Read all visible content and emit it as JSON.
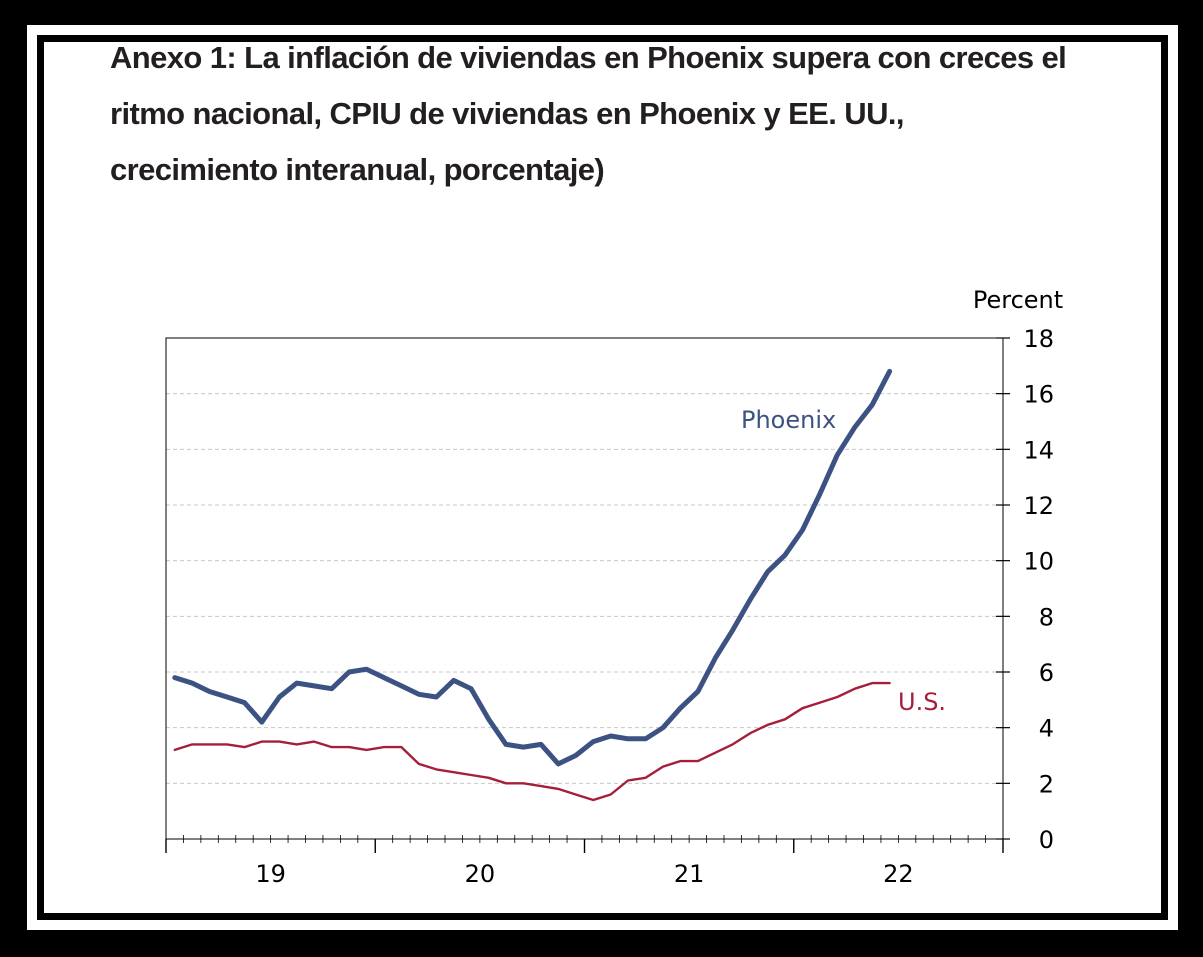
{
  "title": "Anexo 1: La inflación de viviendas en Phoenix supera con creces el ritmo nacional, CPIU de viviendas en Phoenix y EE. UU., crecimiento interanual, porcentaje)",
  "colors": {
    "phoenix": "#3b5282",
    "us": "#a51f3a",
    "grid": "#c8c8c8",
    "axis": "#000000"
  },
  "chart_data": {
    "type": "line",
    "title": "",
    "ylabel": "Percent",
    "xlabel": "",
    "ylim": [
      0,
      18
    ],
    "yticks": [
      "0",
      "2",
      "4",
      "6",
      "8",
      "10",
      "12",
      "14",
      "16",
      "18"
    ],
    "xlim": [
      18.5,
      22.5
    ],
    "xticks": [
      "19",
      "20",
      "21",
      "22"
    ],
    "grid": "horizontal dashed",
    "series": [
      {
        "name": "Phoenix",
        "label": "Phoenix",
        "x": [
          18.542,
          18.625,
          18.708,
          18.792,
          18.875,
          18.958,
          19.042,
          19.125,
          19.208,
          19.292,
          19.375,
          19.458,
          19.542,
          19.625,
          19.708,
          19.792,
          19.875,
          19.958,
          20.042,
          20.125,
          20.208,
          20.292,
          20.375,
          20.458,
          20.542,
          20.625,
          20.708,
          20.792,
          20.875,
          20.958,
          21.042,
          21.125,
          21.208,
          21.292,
          21.375,
          21.458,
          21.542,
          21.625,
          21.708,
          21.792,
          21.875,
          21.958
        ],
        "values": [
          5.8,
          5.6,
          5.3,
          5.1,
          4.9,
          4.2,
          5.1,
          5.6,
          5.5,
          5.4,
          6.0,
          6.1,
          5.8,
          5.5,
          5.2,
          5.1,
          5.7,
          5.4,
          4.3,
          3.4,
          3.3,
          3.4,
          2.7,
          3.0,
          3.5,
          3.7,
          3.6,
          3.6,
          4.0,
          4.7,
          5.3,
          6.5,
          7.5,
          8.6,
          9.6,
          10.2,
          11.1,
          12.4,
          13.8,
          14.8,
          15.6,
          16.8
        ]
      },
      {
        "name": "U.S.",
        "label": "U.S.",
        "x": [
          18.542,
          18.625,
          18.708,
          18.792,
          18.875,
          18.958,
          19.042,
          19.125,
          19.208,
          19.292,
          19.375,
          19.458,
          19.542,
          19.625,
          19.708,
          19.792,
          19.875,
          19.958,
          20.042,
          20.125,
          20.208,
          20.292,
          20.375,
          20.458,
          20.542,
          20.625,
          20.708,
          20.792,
          20.875,
          20.958,
          21.042,
          21.125,
          21.208,
          21.292,
          21.375,
          21.458,
          21.542,
          21.625,
          21.708,
          21.792,
          21.875,
          21.958
        ],
        "values": [
          3.2,
          3.4,
          3.4,
          3.4,
          3.3,
          3.5,
          3.5,
          3.4,
          3.5,
          3.3,
          3.3,
          3.2,
          3.3,
          3.3,
          2.7,
          2.5,
          2.4,
          2.3,
          2.2,
          2.0,
          2.0,
          1.9,
          1.8,
          1.6,
          1.4,
          1.6,
          2.1,
          2.2,
          2.6,
          2.8,
          2.8,
          3.1,
          3.4,
          3.8,
          4.1,
          4.3,
          4.7,
          4.9,
          5.1,
          5.4,
          5.6,
          5.6
        ]
      }
    ]
  }
}
